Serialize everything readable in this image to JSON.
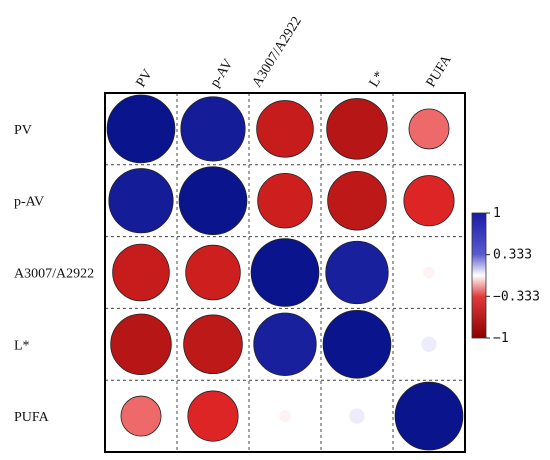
{
  "chart_data": {
    "type": "heatmap",
    "variables": [
      "PV",
      "p-AV",
      "A3007/A2922",
      "L*",
      "PUFA"
    ],
    "matrix": [
      [
        1.0,
        0.9,
        -0.7,
        -0.8,
        -0.35
      ],
      [
        0.9,
        1.0,
        -0.65,
        -0.75,
        -0.55
      ],
      [
        -0.7,
        -0.65,
        1.0,
        0.85,
        -0.03
      ],
      [
        -0.8,
        -0.75,
        0.85,
        1.0,
        0.05
      ],
      [
        -0.35,
        -0.55,
        -0.03,
        0.05,
        1.0
      ]
    ],
    "colorbar": {
      "range": [
        -1,
        1
      ],
      "ticks": [
        1,
        0.333,
        -0.333,
        -1
      ],
      "tick_labels": [
        "1",
        "0.333",
        "−0.333",
        "−1"
      ],
      "colors": {
        "positive": "#0a1a8c",
        "neutral": "#ffffff",
        "negative": "#9c0b0b"
      }
    },
    "grid": "dashed",
    "legend": "right"
  }
}
